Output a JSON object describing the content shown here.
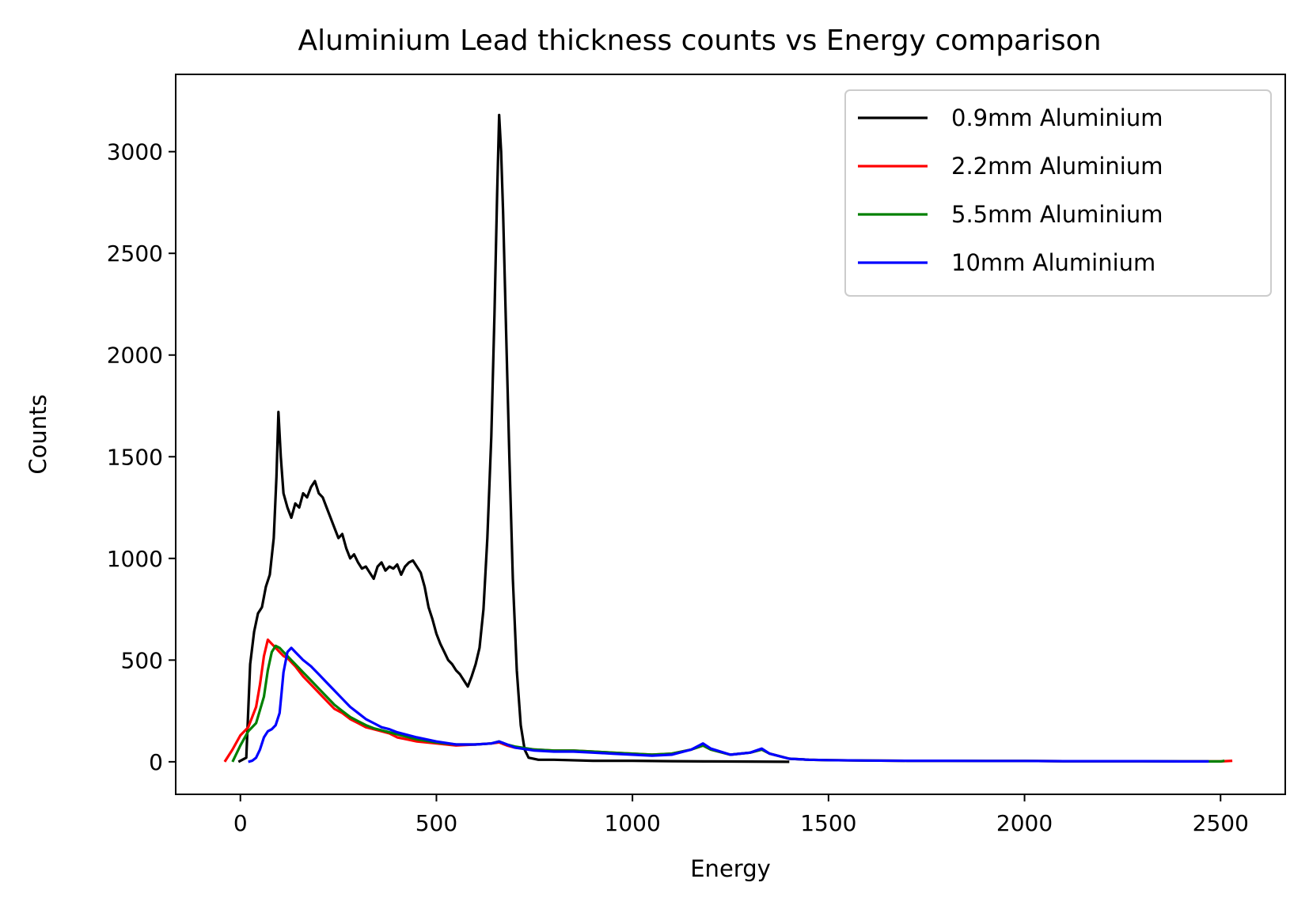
{
  "chart_data": {
    "type": "line",
    "title": "Aluminium Lead thickness counts vs Energy comparison",
    "xlabel": "Energy",
    "ylabel": "Counts",
    "xlim": [
      -165,
      2665
    ],
    "ylim": [
      -160,
      3380
    ],
    "xticks": [
      0,
      500,
      1000,
      1500,
      2000,
      2500
    ],
    "yticks": [
      0,
      500,
      1000,
      1500,
      2000,
      2500,
      3000
    ],
    "legend": "top-right",
    "grid": false,
    "series": [
      {
        "name": "0.9mm Aluminium",
        "color": "#000000",
        "x": [
          -5,
          15,
          25,
          35,
          45,
          55,
          65,
          75,
          85,
          92,
          97,
          103,
          110,
          120,
          130,
          140,
          150,
          160,
          170,
          180,
          190,
          200,
          210,
          220,
          230,
          240,
          250,
          260,
          270,
          280,
          290,
          300,
          310,
          320,
          330,
          340,
          350,
          360,
          370,
          380,
          390,
          400,
          410,
          420,
          430,
          440,
          450,
          460,
          470,
          480,
          490,
          500,
          510,
          520,
          530,
          540,
          550,
          560,
          570,
          580,
          590,
          600,
          610,
          620,
          630,
          640,
          648,
          655,
          660,
          665,
          670,
          678,
          686,
          695,
          705,
          715,
          725,
          735,
          760,
          800,
          900,
          1000,
          1100,
          1200,
          1300,
          1400
        ],
        "values": [
          0,
          20,
          480,
          640,
          730,
          760,
          860,
          920,
          1100,
          1400,
          1720,
          1500,
          1320,
          1250,
          1200,
          1270,
          1250,
          1320,
          1300,
          1350,
          1380,
          1320,
          1300,
          1250,
          1200,
          1150,
          1100,
          1120,
          1050,
          1000,
          1020,
          980,
          950,
          960,
          930,
          900,
          960,
          980,
          940,
          960,
          950,
          970,
          920,
          960,
          980,
          990,
          960,
          930,
          860,
          760,
          700,
          630,
          580,
          540,
          500,
          480,
          450,
          430,
          400,
          370,
          420,
          480,
          560,
          750,
          1100,
          1600,
          2200,
          2800,
          3180,
          3000,
          2700,
          2100,
          1500,
          900,
          450,
          180,
          60,
          20,
          10,
          10,
          5,
          5,
          3,
          2,
          1,
          0
        ]
      },
      {
        "name": "2.2mm Aluminium",
        "color": "#ff0000",
        "x": [
          -40,
          -20,
          0,
          20,
          40,
          50,
          60,
          70,
          80,
          90,
          100,
          110,
          120,
          140,
          160,
          180,
          200,
          220,
          240,
          260,
          280,
          300,
          320,
          340,
          360,
          380,
          400,
          450,
          500,
          550,
          600,
          640,
          660,
          680,
          700,
          750,
          800,
          850,
          900,
          950,
          1000,
          1050,
          1100,
          1150,
          1180,
          1200,
          1250,
          1300,
          1330,
          1350,
          1400,
          1450,
          1500,
          1600,
          1700,
          1800,
          1900,
          2000,
          2100,
          2200,
          2300,
          2400,
          2500,
          2530
        ],
        "values": [
          0,
          60,
          130,
          170,
          270,
          380,
          520,
          600,
          580,
          560,
          540,
          520,
          510,
          470,
          420,
          380,
          340,
          300,
          260,
          240,
          210,
          190,
          170,
          160,
          150,
          140,
          120,
          100,
          90,
          80,
          85,
          90,
          95,
          80,
          70,
          60,
          55,
          55,
          50,
          45,
          40,
          35,
          40,
          60,
          80,
          60,
          35,
          45,
          60,
          40,
          15,
          10,
          8,
          6,
          5,
          5,
          4,
          4,
          3,
          3,
          3,
          2,
          2,
          5
        ]
      },
      {
        "name": "5.5mm Aluminium",
        "color": "#008000",
        "x": [
          -20,
          0,
          20,
          40,
          60,
          70,
          80,
          90,
          100,
          110,
          120,
          130,
          140,
          160,
          180,
          200,
          220,
          240,
          260,
          280,
          300,
          320,
          340,
          360,
          380,
          400,
          450,
          500,
          550,
          600,
          640,
          660,
          680,
          700,
          750,
          800,
          850,
          900,
          950,
          1000,
          1050,
          1100,
          1150,
          1180,
          1200,
          1250,
          1300,
          1330,
          1350,
          1400,
          1450,
          1500,
          1600,
          1700,
          1800,
          1900,
          2000,
          2100,
          2200,
          2300,
          2400,
          2500,
          2510
        ],
        "values": [
          0,
          80,
          150,
          190,
          320,
          450,
          540,
          570,
          560,
          540,
          520,
          500,
          480,
          440,
          400,
          360,
          320,
          280,
          250,
          220,
          200,
          180,
          165,
          155,
          145,
          135,
          110,
          95,
          85,
          85,
          90,
          100,
          85,
          75,
          60,
          55,
          55,
          50,
          45,
          40,
          35,
          40,
          60,
          80,
          60,
          35,
          45,
          60,
          40,
          15,
          10,
          8,
          6,
          5,
          5,
          4,
          4,
          3,
          3,
          3,
          2,
          2,
          5
        ]
      },
      {
        "name": "10mm Aluminium",
        "color": "#0000ff",
        "x": [
          20,
          30,
          40,
          50,
          60,
          70,
          80,
          90,
          100,
          105,
          110,
          120,
          130,
          140,
          150,
          160,
          180,
          200,
          220,
          240,
          260,
          280,
          300,
          320,
          340,
          360,
          380,
          400,
          450,
          500,
          550,
          600,
          640,
          660,
          680,
          700,
          750,
          800,
          850,
          900,
          950,
          1000,
          1050,
          1100,
          1150,
          1180,
          1200,
          1250,
          1300,
          1330,
          1350,
          1400,
          1450,
          1500,
          1600,
          1700,
          1800,
          1900,
          2000,
          2100,
          2200,
          2300,
          2400,
          2470
        ],
        "values": [
          0,
          5,
          20,
          60,
          120,
          150,
          160,
          180,
          240,
          340,
          440,
          540,
          560,
          540,
          520,
          500,
          470,
          430,
          390,
          350,
          310,
          270,
          240,
          210,
          190,
          170,
          160,
          145,
          120,
          100,
          85,
          85,
          90,
          100,
          85,
          70,
          55,
          50,
          50,
          45,
          40,
          35,
          30,
          35,
          60,
          90,
          65,
          35,
          45,
          65,
          40,
          15,
          10,
          8,
          6,
          5,
          5,
          4,
          4,
          3,
          3,
          3,
          2,
          2
        ]
      }
    ]
  }
}
